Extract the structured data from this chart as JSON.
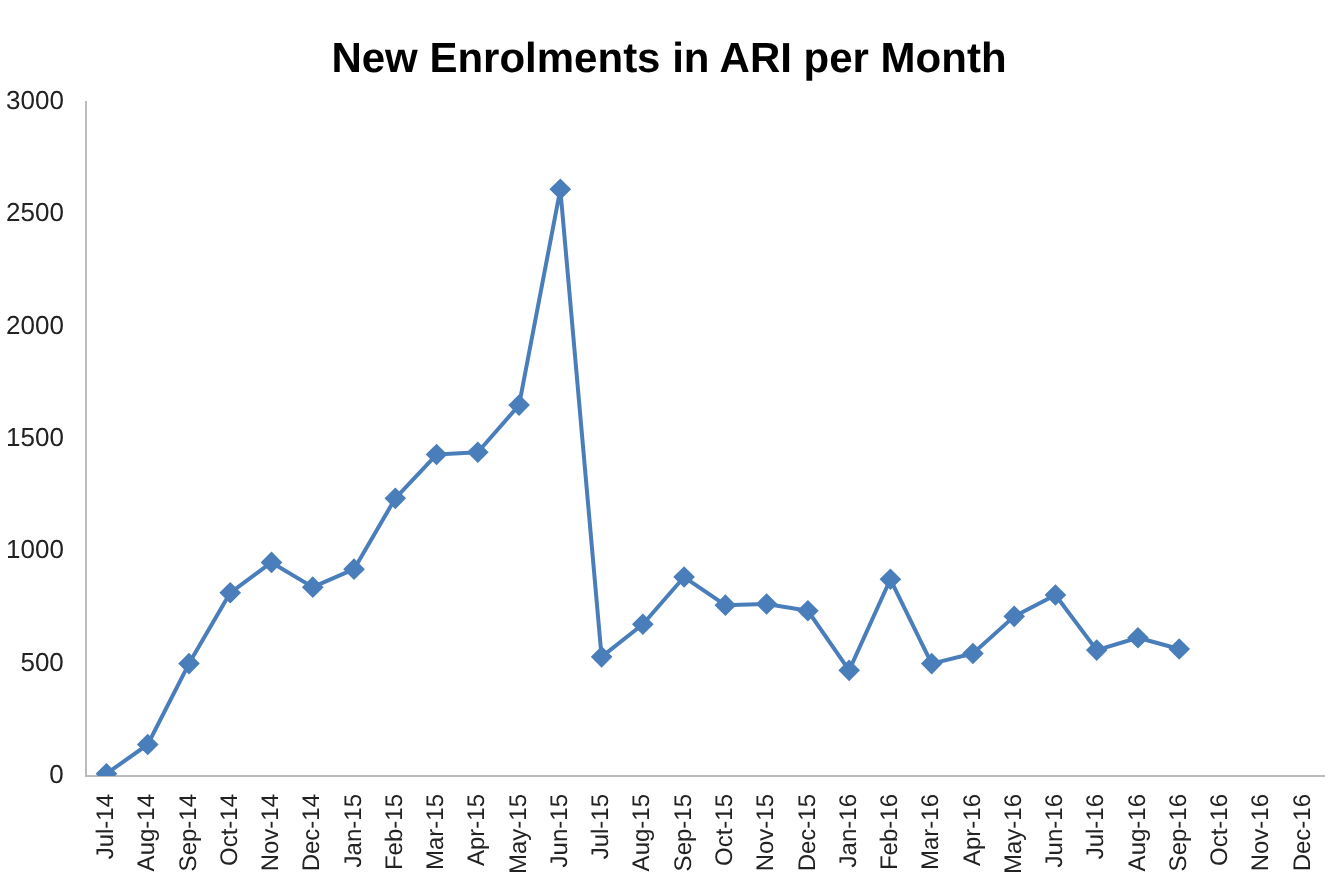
{
  "chart_data": {
    "type": "line",
    "title": "New Enrolments in ARI per Month",
    "categories": [
      "Jul-14",
      "Aug-14",
      "Sep-14",
      "Oct-14",
      "Nov-14",
      "Dec-14",
      "Jan-15",
      "Feb-15",
      "Mar-15",
      "Apr-15",
      "May-15",
      "Jun-15",
      "Jul-15",
      "Aug-15",
      "Sep-15",
      "Oct-15",
      "Nov-15",
      "Dec-15",
      "Jan-16",
      "Feb-16",
      "Mar-16",
      "Apr-16",
      "May-16",
      "Jun-16",
      "Jul-16",
      "Aug-16",
      "Sep-16",
      "Oct-16",
      "Nov-16",
      "Dec-16"
    ],
    "series": [
      {
        "color": "#4a7ebb",
        "values": [
          10,
          140,
          500,
          815,
          950,
          840,
          920,
          1235,
          1430,
          1440,
          1650,
          2610,
          530,
          675,
          885,
          760,
          765,
          735,
          470,
          875,
          500,
          545,
          710,
          805,
          560,
          615,
          565,
          null,
          null,
          null
        ]
      }
    ],
    "ylim": [
      0,
      3000
    ],
    "yticks": [
      0,
      500,
      1000,
      1500,
      2000,
      2500,
      3000
    ],
    "grid": false,
    "legend": false,
    "marker": "diamond",
    "line_style": "solid"
  }
}
